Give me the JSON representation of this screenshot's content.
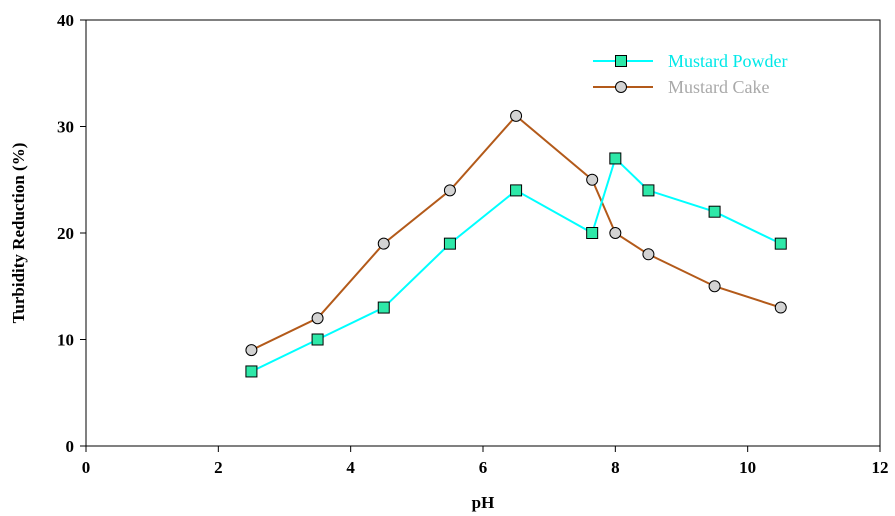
{
  "chart_data": {
    "type": "line",
    "title": "",
    "xlabel": "pH",
    "ylabel": "Turbidity Reduction (%)",
    "xlim": [
      0,
      12
    ],
    "ylim": [
      0,
      40
    ],
    "xticks": [
      0,
      2,
      4,
      6,
      8,
      10,
      12
    ],
    "yticks": [
      0,
      10,
      20,
      30,
      40
    ],
    "grid": false,
    "legend_position": "top-right",
    "series": [
      {
        "name": "Mustard Powder",
        "color": "#00ffff",
        "marker": "square",
        "marker_color": "#2ee8a8",
        "x": [
          2.5,
          3.5,
          4.5,
          5.5,
          6.5,
          7.65,
          8.0,
          8.5,
          9.5,
          10.5
        ],
        "y": [
          7,
          10,
          13,
          19,
          24,
          20,
          27,
          24,
          22,
          19
        ]
      },
      {
        "name": "Mustard Cake",
        "color": "#b35a1a",
        "marker": "circle",
        "marker_color": "#d3d3d3",
        "x": [
          2.5,
          3.5,
          4.5,
          5.5,
          6.5,
          7.65,
          8.0,
          8.5,
          9.5,
          10.5
        ],
        "y": [
          9,
          12,
          19,
          24,
          31,
          25,
          20,
          18,
          15,
          13
        ]
      }
    ]
  }
}
